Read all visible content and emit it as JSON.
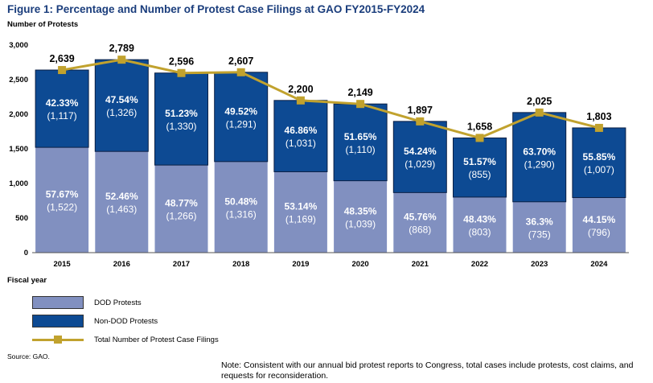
{
  "figure": {
    "title": "Figure 1: Percentage and Number of Protest Case Filings at GAO FY2015-FY2024",
    "source": "Source: GAO.",
    "note": "Note: Consistent with our annual bid protest reports to Congress, total cases include protests, cost claims, and requests for reconsideration."
  },
  "legend": {
    "dod": "DOD Protests",
    "non_dod": "Non-DOD Protests",
    "total": "Total Number of Protest Case Filings"
  },
  "colors": {
    "dod": "#8190c0",
    "non_dod": "#0d4a93",
    "total_line": "#c1a22e",
    "title": "#1a3d7c"
  },
  "chart_data": {
    "type": "bar",
    "stacked": true,
    "xlabel": "Fiscal year",
    "ylabel": "Number of Protests",
    "ylim": [
      0,
      3000
    ],
    "yticks": [
      "0",
      "500",
      "1,000",
      "1,500",
      "2,000",
      "2,500",
      "3,000"
    ],
    "grid": false,
    "legend_position": "bottom-left",
    "categories": [
      "2015",
      "2016",
      "2017",
      "2018",
      "2019",
      "2020",
      "2021",
      "2022",
      "2023",
      "2024"
    ],
    "series": [
      {
        "name": "DOD Protests",
        "values": [
          1522,
          1463,
          1266,
          1316,
          1169,
          1039,
          868,
          803,
          735,
          796
        ],
        "pct_labels": [
          "57.67%",
          "52.46%",
          "48.77%",
          "50.48%",
          "53.14%",
          "48.35%",
          "45.76%",
          "48.43%",
          "36.3%",
          "44.15%"
        ],
        "count_labels": [
          "(1,522)",
          "(1,463)",
          "(1,266)",
          "(1,316)",
          "(1,169)",
          "(1,039)",
          "(868)",
          "(803)",
          "(735)",
          "(796)"
        ]
      },
      {
        "name": "Non-DOD Protests",
        "values": [
          1117,
          1326,
          1330,
          1291,
          1031,
          1110,
          1029,
          855,
          1290,
          1007
        ],
        "pct_labels": [
          "42.33%",
          "47.54%",
          "51.23%",
          "49.52%",
          "46.86%",
          "51.65%",
          "54.24%",
          "51.57%",
          "63.70%",
          "55.85%"
        ],
        "count_labels": [
          "(1,117)",
          "(1,326)",
          "(1,330)",
          "(1,291)",
          "(1,031)",
          "(1,110)",
          "(1,029)",
          "(855)",
          "(1,290)",
          "(1,007)"
        ]
      }
    ],
    "line": {
      "name": "Total Number of Protest Case Filings",
      "values": [
        2639,
        2789,
        2596,
        2607,
        2200,
        2149,
        1897,
        1658,
        2025,
        1803
      ],
      "labels": [
        "2,639",
        "2,789",
        "2,596",
        "2,607",
        "2,200",
        "2,149",
        "1,897",
        "1,658",
        "2,025",
        "1,803"
      ]
    }
  }
}
